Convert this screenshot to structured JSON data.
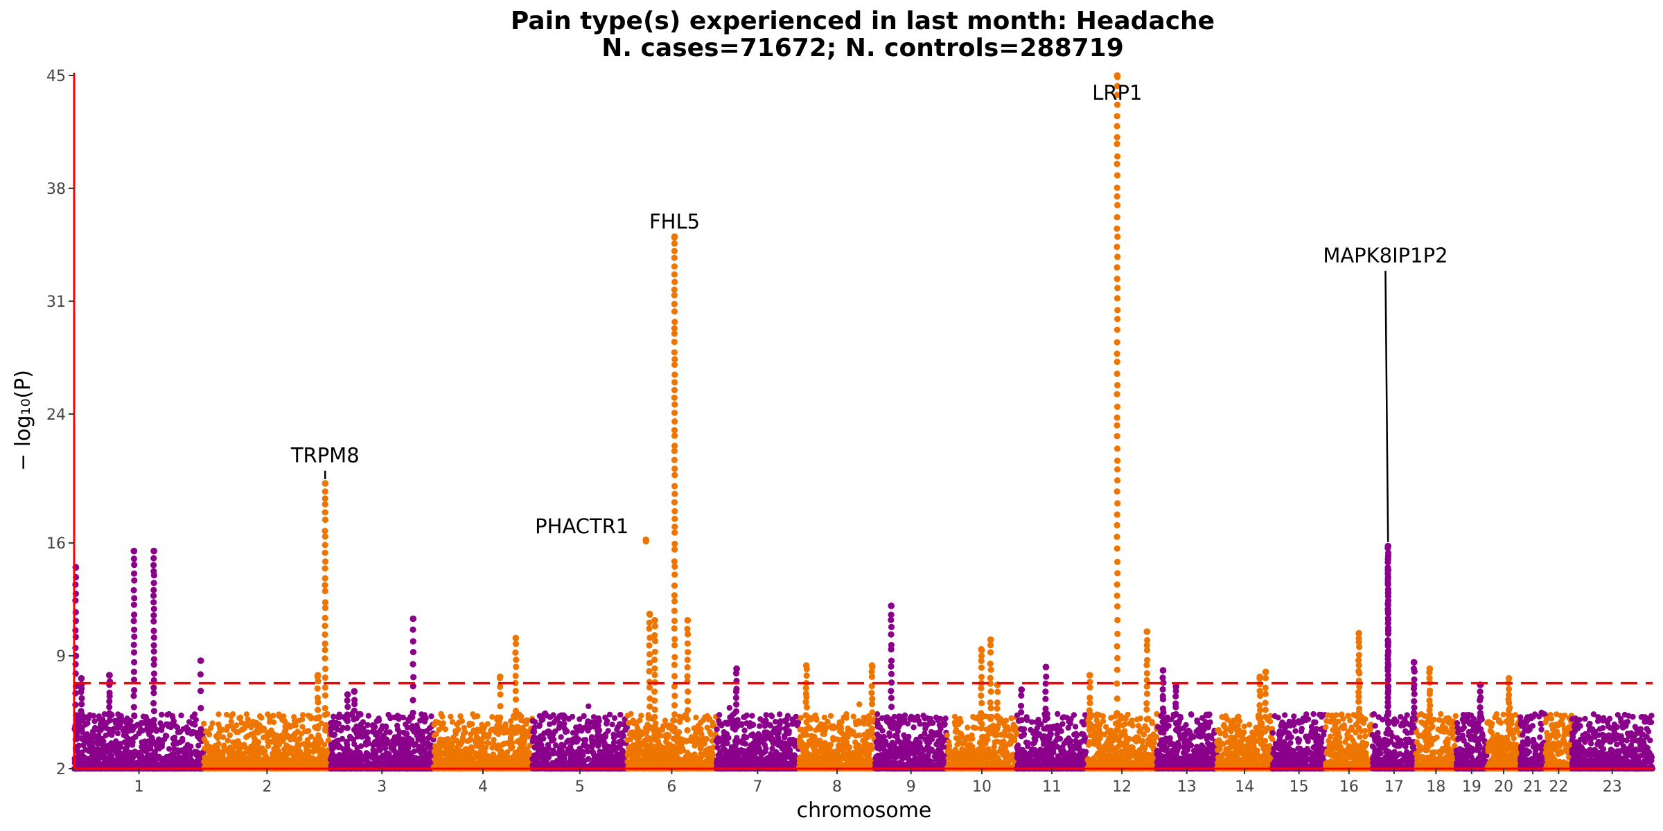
{
  "chart_data": {
    "type": "scatter",
    "title": "Pain type(s) experienced in last month: Headache",
    "subtitle": "N. cases=71672; N. controls=288719",
    "xlabel": "chromosome",
    "ylabel": "− log₁₀(P)",
    "ylim": [
      2,
      45
    ],
    "yticks": [
      2,
      9,
      16,
      24,
      31,
      38,
      45
    ],
    "threshold": 7.3,
    "colors": {
      "odd": "#8B008B",
      "even": "#EE7600",
      "threshold": "#FF0000",
      "axis": "#FF0000"
    },
    "chromosomes": [
      {
        "label": "1",
        "start": 0,
        "end": 249
      },
      {
        "label": "2",
        "start": 249,
        "end": 492
      },
      {
        "label": "3",
        "start": 492,
        "end": 690
      },
      {
        "label": "4",
        "start": 690,
        "end": 880
      },
      {
        "label": "5",
        "start": 880,
        "end": 1062
      },
      {
        "label": "6",
        "start": 1062,
        "end": 1233
      },
      {
        "label": "7",
        "start": 1233,
        "end": 1392
      },
      {
        "label": "8",
        "start": 1392,
        "end": 1538
      },
      {
        "label": "9",
        "start": 1538,
        "end": 1676
      },
      {
        "label": "10",
        "start": 1676,
        "end": 1810
      },
      {
        "label": "11",
        "start": 1810,
        "end": 1945
      },
      {
        "label": "12",
        "start": 1945,
        "end": 2079
      },
      {
        "label": "13",
        "start": 2079,
        "end": 2194
      },
      {
        "label": "14",
        "start": 2194,
        "end": 2301
      },
      {
        "label": "15",
        "start": 2301,
        "end": 2403
      },
      {
        "label": "16",
        "start": 2403,
        "end": 2493
      },
      {
        "label": "17",
        "start": 2493,
        "end": 2576
      },
      {
        "label": "18",
        "start": 2576,
        "end": 2654
      },
      {
        "label": "19",
        "start": 2654,
        "end": 2713
      },
      {
        "label": "20",
        "start": 2713,
        "end": 2777
      },
      {
        "label": "21",
        "start": 2777,
        "end": 2825
      },
      {
        "label": "22",
        "start": 2825,
        "end": 2876
      },
      {
        "label": "23",
        "start": 2876,
        "end": 3031
      }
    ],
    "peaks": [
      {
        "x": 3,
        "y": 14.5,
        "n": 18,
        "s": 0.5
      },
      {
        "x": 14,
        "y": 7.6,
        "n": 10,
        "s": 0.8
      },
      {
        "x": 68,
        "y": 7.8,
        "n": 10,
        "s": 0.8
      },
      {
        "x": 115,
        "y": 15.5,
        "n": 22,
        "s": 0.6
      },
      {
        "x": 153,
        "y": 15.5,
        "n": 26,
        "s": 0.6
      },
      {
        "x": 243,
        "y": 8.7,
        "n": 5,
        "s": 0.5
      },
      {
        "x": 468,
        "y": 7.8,
        "n": 8,
        "s": 0.8
      },
      {
        "x": 482,
        "y": 19.7,
        "n": 30,
        "s": 0.4
      },
      {
        "x": 525,
        "y": 6.6,
        "n": 6,
        "s": 0.7
      },
      {
        "x": 538,
        "y": 6.8,
        "n": 6,
        "s": 0.7
      },
      {
        "x": 651,
        "y": 11.3,
        "n": 10,
        "s": 0.5
      },
      {
        "x": 818,
        "y": 7.7,
        "n": 6,
        "s": 0.7
      },
      {
        "x": 848,
        "y": 10.1,
        "n": 12,
        "s": 0.6
      },
      {
        "x": 1098,
        "y": 16.2,
        "n": 2,
        "s": 0.2
      },
      {
        "x": 1105,
        "y": 11.6,
        "n": 14,
        "s": 0.8
      },
      {
        "x": 1115,
        "y": 11.2,
        "n": 14,
        "s": 0.8
      },
      {
        "x": 1153,
        "y": 35.0,
        "n": 60,
        "s": 0.4
      },
      {
        "x": 1178,
        "y": 11.2,
        "n": 14,
        "s": 0.6
      },
      {
        "x": 1272,
        "y": 8.2,
        "n": 10,
        "s": 0.8
      },
      {
        "x": 1406,
        "y": 8.4,
        "n": 12,
        "s": 1.0
      },
      {
        "x": 1532,
        "y": 8.4,
        "n": 10,
        "s": 0.8
      },
      {
        "x": 1569,
        "y": 12.1,
        "n": 16,
        "s": 0.6
      },
      {
        "x": 1742,
        "y": 9.4,
        "n": 12,
        "s": 0.8
      },
      {
        "x": 1760,
        "y": 10.0,
        "n": 12,
        "s": 0.8
      },
      {
        "x": 1773,
        "y": 7.2,
        "n": 6,
        "s": 0.8
      },
      {
        "x": 1866,
        "y": 8.3,
        "n": 8,
        "s": 0.8
      },
      {
        "x": 1819,
        "y": 6.9,
        "n": 6,
        "s": 0.8
      },
      {
        "x": 1950,
        "y": 7.8,
        "n": 8,
        "s": 0.8
      },
      {
        "x": 2003,
        "y": 45.0,
        "n": 60,
        "s": 0.5
      },
      {
        "x": 2060,
        "y": 10.5,
        "n": 14,
        "s": 0.6
      },
      {
        "x": 2091,
        "y": 8.1,
        "n": 10,
        "s": 0.8
      },
      {
        "x": 2116,
        "y": 7.1,
        "n": 8,
        "s": 0.8
      },
      {
        "x": 2277,
        "y": 7.7,
        "n": 8,
        "s": 0.8
      },
      {
        "x": 2288,
        "y": 8.0,
        "n": 8,
        "s": 0.8
      },
      {
        "x": 2467,
        "y": 10.4,
        "n": 18,
        "s": 0.8
      },
      {
        "x": 2523,
        "y": 15.8,
        "n": 60,
        "s": 0.5
      },
      {
        "x": 2573,
        "y": 8.6,
        "n": 12,
        "s": 0.8
      },
      {
        "x": 2603,
        "y": 8.2,
        "n": 12,
        "s": 0.8
      },
      {
        "x": 2700,
        "y": 7.2,
        "n": 8,
        "s": 0.8
      },
      {
        "x": 2755,
        "y": 7.6,
        "n": 10,
        "s": 0.8
      }
    ],
    "annotations": [
      {
        "label": "LRP1",
        "x": 2003,
        "y": 45.0,
        "lx": 2003,
        "ly": 43.5,
        "line": false
      },
      {
        "label": "FHL5",
        "x": 1153,
        "y": 35.0,
        "lx": 1153,
        "ly": 35.5,
        "line": false
      },
      {
        "label": "MAPK8IP1P2",
        "x": 2523,
        "y": 15.8,
        "lx": 2518,
        "ly": 33.4,
        "line": true
      },
      {
        "label": "TRPM8",
        "x": 482,
        "y": 19.7,
        "lx": 482,
        "ly": 21.0,
        "line": true
      },
      {
        "label": "PHACTR1",
        "x": 1098,
        "y": 16.2,
        "lx": 975,
        "ly": 16.6,
        "line": false
      }
    ]
  }
}
